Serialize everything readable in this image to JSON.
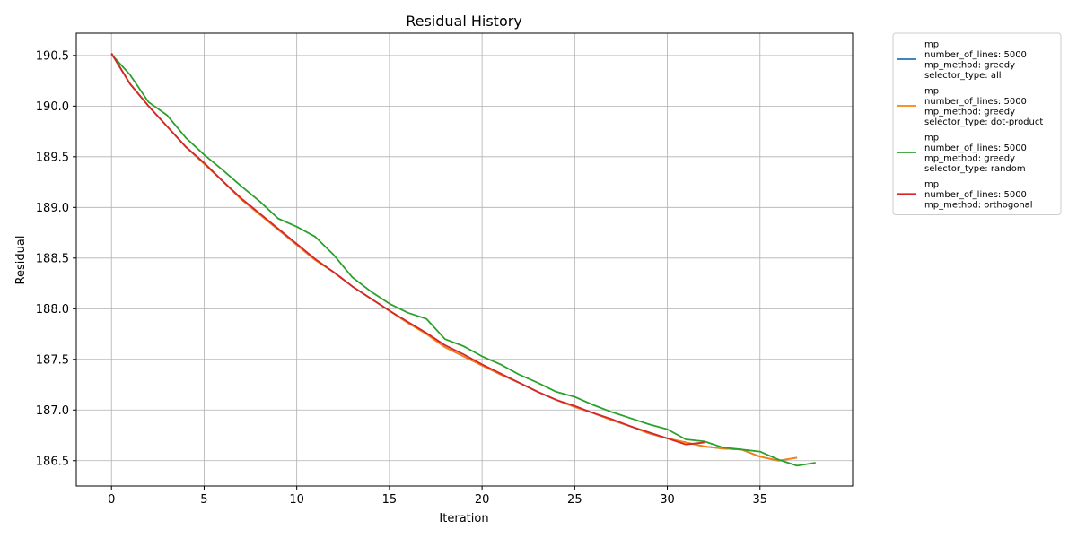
{
  "chart_data": {
    "type": "line",
    "title": "Residual History",
    "xlabel": "Iteration",
    "ylabel": "Residual",
    "xlim": [
      -1.9,
      40
    ],
    "ylim": [
      186.25,
      190.72
    ],
    "xticks": [
      0,
      5,
      10,
      15,
      20,
      25,
      30,
      35
    ],
    "yticks": [
      186.5,
      187.0,
      187.5,
      188.0,
      188.5,
      189.0,
      189.5,
      190.0,
      190.5
    ],
    "ytick_labels": [
      "186.5",
      "187.0",
      "187.5",
      "188.0",
      "188.5",
      "189.0",
      "189.5",
      "190.0",
      "190.5"
    ],
    "grid": true,
    "legend_position": "outside-top-right",
    "series": [
      {
        "label_lines": [
          "mp",
          "number_of_lines: 5000",
          "mp_method: greedy",
          "selector_type: all"
        ],
        "color": "#1f77b4",
        "x": [
          0,
          1,
          2,
          3,
          4,
          5,
          6,
          7,
          8,
          9,
          10,
          11,
          12,
          13,
          14,
          15,
          16,
          17,
          18,
          19,
          20,
          21,
          22,
          23,
          24,
          25,
          26,
          27,
          28,
          29,
          30,
          31,
          32,
          33,
          34,
          35,
          36,
          37
        ],
        "y": [
          190.52,
          190.22,
          190.0,
          189.8,
          189.6,
          189.43,
          189.26,
          189.08,
          188.93,
          188.78,
          188.63,
          188.48,
          188.36,
          188.22,
          188.1,
          187.98,
          187.86,
          187.75,
          187.62,
          187.53,
          187.44,
          187.35,
          187.27,
          187.18,
          187.1,
          187.03,
          186.97,
          186.9,
          186.84,
          186.77,
          186.72,
          186.68,
          186.64,
          186.62,
          186.61,
          186.54,
          186.5,
          186.53
        ]
      },
      {
        "label_lines": [
          "mp",
          "number_of_lines: 5000",
          "mp_method: greedy",
          "selector_type: dot-product"
        ],
        "color": "#ff7f0e",
        "x": [
          0,
          1,
          2,
          3,
          4,
          5,
          6,
          7,
          8,
          9,
          10,
          11,
          12,
          13,
          14,
          15,
          16,
          17,
          18,
          19,
          20,
          21,
          22,
          23,
          24,
          25,
          26,
          27,
          28,
          29,
          30,
          31,
          32,
          33,
          34,
          35,
          36,
          37
        ],
        "y": [
          190.52,
          190.22,
          190.0,
          189.8,
          189.6,
          189.43,
          189.26,
          189.08,
          188.93,
          188.78,
          188.63,
          188.48,
          188.36,
          188.22,
          188.1,
          187.98,
          187.86,
          187.75,
          187.62,
          187.53,
          187.44,
          187.35,
          187.27,
          187.18,
          187.1,
          187.03,
          186.97,
          186.9,
          186.84,
          186.77,
          186.72,
          186.68,
          186.64,
          186.62,
          186.61,
          186.54,
          186.5,
          186.53
        ]
      },
      {
        "label_lines": [
          "mp",
          "number_of_lines: 5000",
          "mp_method: greedy",
          "selector_type: random"
        ],
        "color": "#2ca02c",
        "x": [
          0,
          1,
          2,
          3,
          4,
          5,
          6,
          7,
          8,
          9,
          10,
          11,
          12,
          13,
          14,
          15,
          16,
          17,
          18,
          19,
          20,
          21,
          22,
          23,
          24,
          25,
          26,
          27,
          28,
          29,
          30,
          31,
          32,
          33,
          34,
          35,
          36,
          37,
          38
        ],
        "y": [
          190.51,
          190.31,
          190.04,
          189.91,
          189.69,
          189.52,
          189.37,
          189.21,
          189.06,
          188.89,
          188.81,
          188.71,
          188.53,
          188.31,
          188.17,
          188.05,
          187.96,
          187.9,
          187.7,
          187.63,
          187.53,
          187.45,
          187.35,
          187.27,
          187.18,
          187.13,
          187.05,
          186.98,
          186.92,
          186.86,
          186.81,
          186.71,
          186.69,
          186.63,
          186.61,
          186.59,
          186.51,
          186.45,
          186.48
        ]
      },
      {
        "label_lines": [
          "mp",
          "number_of_lines: 5000",
          "mp_method: orthogonal"
        ],
        "color": "#d62728",
        "x": [
          0,
          1,
          2,
          3,
          4,
          5,
          6,
          7,
          8,
          9,
          10,
          11,
          12,
          13,
          14,
          15,
          16,
          17,
          18,
          19,
          20,
          21,
          22,
          23,
          24,
          25,
          26,
          27,
          28,
          29,
          30,
          31,
          32
        ],
        "y": [
          190.52,
          190.22,
          190.0,
          189.8,
          189.6,
          189.44,
          189.26,
          189.09,
          188.94,
          188.79,
          188.64,
          188.49,
          188.36,
          188.22,
          188.1,
          187.98,
          187.87,
          187.76,
          187.64,
          187.55,
          187.45,
          187.36,
          187.27,
          187.18,
          187.1,
          187.04,
          186.97,
          186.91,
          186.84,
          186.78,
          186.72,
          186.66,
          186.68
        ]
      }
    ]
  }
}
